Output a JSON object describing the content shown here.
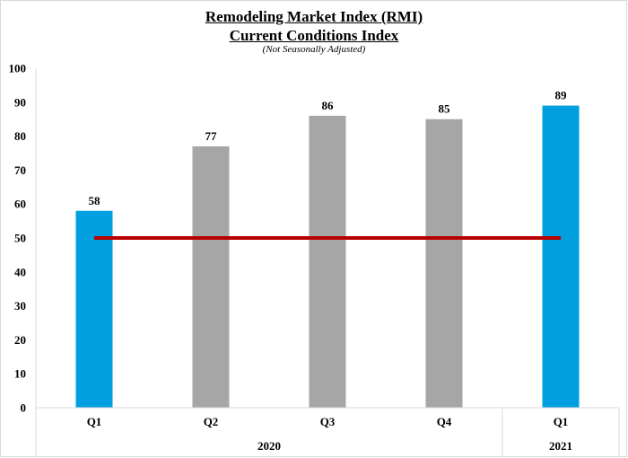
{
  "chart_data": {
    "type": "bar",
    "title": "Remodeling Market Index (RMI)",
    "title_line2": "Current Conditions Index",
    "subtitle": "(Not Seasonally Adjusted)",
    "categories": [
      "Q1",
      "Q2",
      "Q3",
      "Q4",
      "Q1"
    ],
    "groups": [
      {
        "label": "2020",
        "count": 4
      },
      {
        "label": "2021",
        "count": 1
      }
    ],
    "values": [
      58,
      77,
      86,
      85,
      89
    ],
    "bar_colors": [
      "#009fdf",
      "#a6a6a6",
      "#a6a6a6",
      "#a6a6a6",
      "#009fdf"
    ],
    "reference_line": {
      "value": 50,
      "color": "#b80000"
    },
    "ylim": [
      0,
      100
    ],
    "yticks": [
      0,
      10,
      20,
      30,
      40,
      50,
      60,
      70,
      80,
      90,
      100
    ],
    "grid": false,
    "legend": "none"
  }
}
